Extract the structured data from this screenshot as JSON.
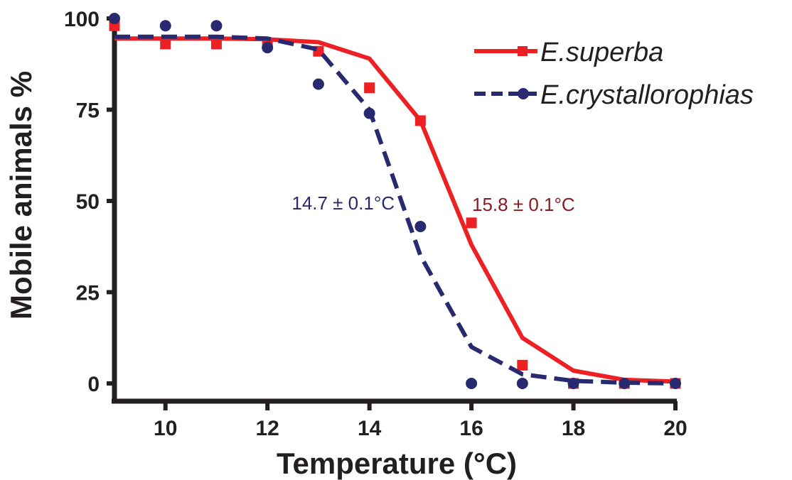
{
  "chart_data": {
    "type": "line",
    "title": "",
    "xlabel": "Temperature (°C)",
    "ylabel": "Mobile animals %",
    "xlim": [
      9,
      20
    ],
    "ylim": [
      0,
      100
    ],
    "x_ticks": [
      "10",
      "12",
      "14",
      "16",
      "18",
      "20"
    ],
    "y_ticks": [
      "0",
      "25",
      "50",
      "75",
      "100"
    ],
    "grid": false,
    "legend_position": "top-right",
    "series": [
      {
        "name": "E.superba",
        "color": "#ed2024",
        "line_style": "solid",
        "marker": "square",
        "points": [
          {
            "x": 9,
            "y": 98
          },
          {
            "x": 10,
            "y": 93
          },
          {
            "x": 11,
            "y": 93
          },
          {
            "x": 12,
            "y": 93
          },
          {
            "x": 13,
            "y": 91
          },
          {
            "x": 14,
            "y": 81
          },
          {
            "x": 15,
            "y": 72
          },
          {
            "x": 16,
            "y": 44
          },
          {
            "x": 17,
            "y": 5
          },
          {
            "x": 18,
            "y": 0
          },
          {
            "x": 19,
            "y": 0
          },
          {
            "x": 20,
            "y": 0
          }
        ],
        "fit": [
          {
            "x": 9,
            "y": 94.5
          },
          {
            "x": 10,
            "y": 94.5
          },
          {
            "x": 11,
            "y": 94.5
          },
          {
            "x": 12,
            "y": 94.3
          },
          {
            "x": 13,
            "y": 93.5
          },
          {
            "x": 14,
            "y": 89
          },
          {
            "x": 15,
            "y": 72
          },
          {
            "x": 16,
            "y": 38
          },
          {
            "x": 17,
            "y": 12.5
          },
          {
            "x": 18,
            "y": 3.5
          },
          {
            "x": 19,
            "y": 1
          },
          {
            "x": 20,
            "y": 0.5
          }
        ]
      },
      {
        "name": "E.crystallorophias",
        "color": "#272a6e",
        "line_style": "dashed",
        "marker": "circle",
        "points": [
          {
            "x": 9,
            "y": 100
          },
          {
            "x": 10,
            "y": 98
          },
          {
            "x": 11,
            "y": 98
          },
          {
            "x": 12,
            "y": 92
          },
          {
            "x": 13,
            "y": 82
          },
          {
            "x": 14,
            "y": 74
          },
          {
            "x": 15,
            "y": 43
          },
          {
            "x": 16,
            "y": 0
          },
          {
            "x": 17,
            "y": 0
          },
          {
            "x": 18,
            "y": 0
          },
          {
            "x": 19,
            "y": 0
          },
          {
            "x": 20,
            "y": 0
          }
        ],
        "fit": [
          {
            "x": 9,
            "y": 95
          },
          {
            "x": 10,
            "y": 95
          },
          {
            "x": 11,
            "y": 95
          },
          {
            "x": 12,
            "y": 94.5
          },
          {
            "x": 13,
            "y": 91.5
          },
          {
            "x": 14,
            "y": 75
          },
          {
            "x": 14.5,
            "y": 55
          },
          {
            "x": 15,
            "y": 35
          },
          {
            "x": 16,
            "y": 10
          },
          {
            "x": 17,
            "y": 2.5
          },
          {
            "x": 18,
            "y": 0.7
          },
          {
            "x": 19,
            "y": 0.2
          },
          {
            "x": 20,
            "y": 0
          }
        ]
      }
    ],
    "annotations": [
      {
        "text": "14.7 ± 0.1°C",
        "color": "#272a6e",
        "x": 14.7,
        "y": 50
      },
      {
        "text": "15.8 ± 0.1°C",
        "color": "#8b1a1f",
        "x": 15.8,
        "y": 50
      }
    ]
  }
}
